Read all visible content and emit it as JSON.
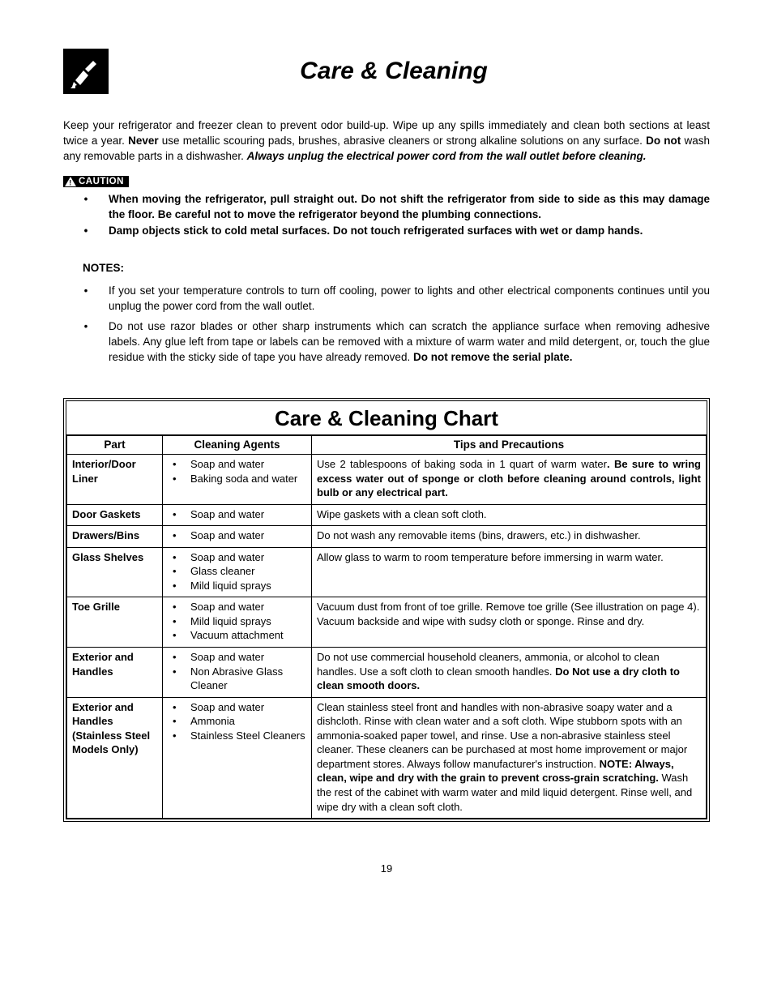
{
  "header": {
    "title": "Care & Cleaning"
  },
  "intro": {
    "pre_never": "Keep your refrigerator and freezer clean to prevent odor build-up. Wipe up any spills immediately and clean both sections at least twice a year. ",
    "never": "Never",
    "post_never": " use metallic scouring pads, brushes, abrasive cleaners or strong alkaline solutions on any surface. ",
    "donot": "Do not",
    "post_donot": " wash any removable parts in a dishwasher. ",
    "unplug": "Always unplug the electrical power cord from the wall outlet before cleaning."
  },
  "caution": {
    "label": "CAUTION",
    "items": [
      "When moving the refrigerator, pull straight out. Do not shift the refrigerator from side to side as this may damage the floor. Be careful not to move the refrigerator beyond the plumbing connections.",
      "Damp objects stick to cold metal surfaces. Do not touch refrigerated surfaces with wet or damp hands."
    ]
  },
  "notes": {
    "heading": "NOTES:",
    "items": [
      {
        "text": "If you set your temperature controls to turn off cooling, power to lights and other electrical components continues until you unplug the power cord from the wall outlet."
      },
      {
        "text": "Do not use razor blades or other sharp instruments which can scratch the appliance surface when removing adhesive labels. Any glue left from tape or labels can be removed with a mixture of warm water and mild detergent, or, touch the glue residue with the sticky side of tape you have already removed. ",
        "bold": "Do not remove the serial plate."
      }
    ]
  },
  "chart": {
    "title": "Care & Cleaning Chart",
    "headers": {
      "part": "Part",
      "agents": "Cleaning Agents",
      "tips": "Tips and Precautions"
    },
    "rows": [
      {
        "part": "Interior/Door Liner",
        "agents": [
          "Soap and water",
          "Baking soda and water"
        ],
        "tips_pre": "Use 2 tablespoons of baking soda in 1 quart of warm water",
        "tips_bold": ". Be sure to wring excess water out of sponge or cloth before cleaning around controls, light bulb or any electrical part.",
        "tips_justify": true
      },
      {
        "part": "Door Gaskets",
        "agents": [
          "Soap and water"
        ],
        "tips_pre": "Wipe gaskets with a clean soft cloth.",
        "tips_bold": ""
      },
      {
        "part": "Drawers/Bins",
        "agents": [
          "Soap and water"
        ],
        "tips_pre": "Do not wash any removable items (bins, drawers, etc.) in dishwasher.",
        "tips_bold": ""
      },
      {
        "part": "Glass Shelves",
        "agents": [
          "Soap and water",
          "Glass cleaner",
          "Mild liquid sprays"
        ],
        "tips_pre": "Allow glass to warm to room temperature before immersing in warm water.",
        "tips_bold": ""
      },
      {
        "part": "Toe Grille",
        "agents": [
          "Soap and water",
          "Mild liquid sprays",
          "Vacuum attachment"
        ],
        "tips_pre": "Vacuum dust from front of toe grille. Remove toe grille (See illustration on page 4). Vacuum backside and wipe with sudsy cloth or sponge. Rinse and dry.",
        "tips_bold": ""
      },
      {
        "part": "Exterior and Handles",
        "agents": [
          "Soap and water",
          "Non Abrasive Glass Cleaner"
        ],
        "tips_pre": "Do not use commercial household cleaners, ammonia, or alcohol to clean handles. Use a soft cloth to clean smooth handles. ",
        "tips_bold": "Do Not use a dry cloth to clean smooth doors."
      },
      {
        "part": "Exterior and Handles (Stainless Steel Models Only)",
        "agents": [
          "Soap and water",
          "Ammonia",
          "Stainless Steel Cleaners"
        ],
        "tips_pre": "Clean stainless steel front and handles with non-abrasive soapy water and a dishcloth. Rinse with clean water and a soft cloth. Wipe stubborn spots with an ammonia-soaked paper towel, and rinse. Use a non-abrasive stainless steel cleaner. These cleaners can be purchased at most home improvement or major department stores. Always follow manufacturer's instruction. ",
        "tips_bold": "NOTE: Always, clean, wipe and dry with the grain to prevent cross-grain scratching.",
        "tips_post": " Wash the rest of the cabinet with warm water and mild liquid detergent. Rinse well, and wipe dry with a clean soft cloth."
      }
    ]
  },
  "page_number": "19"
}
